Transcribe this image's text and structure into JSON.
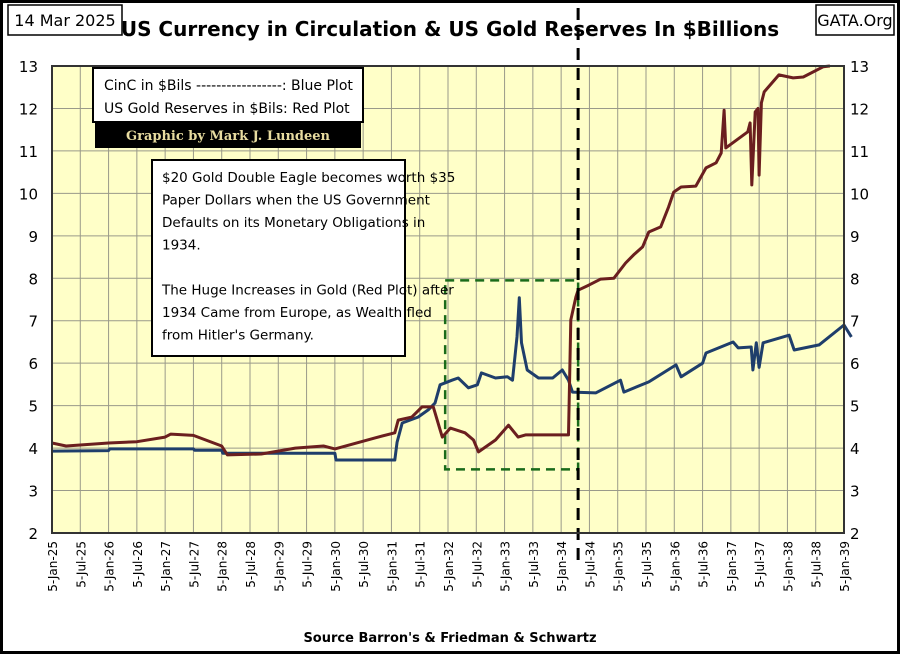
{
  "header": {
    "date": "14 Mar 2025",
    "title": "US Currency in Circulation & US Gold Reserves In $Billions",
    "site": "GATA.Org"
  },
  "legend": {
    "line1": "CinC in $Bils -----------------:  Blue Plot",
    "line2": "US Gold Reserves in $Bils:  Red Plot",
    "credit": "Graphic by Mark J. Lundeen"
  },
  "note": {
    "lines": [
      "$20 Gold Double Eagle becomes worth $35",
      "Paper Dollars when the US Government",
      "Defaults on its Monetary Obligations in",
      "1934.",
      "",
      "The Huge Increases in Gold (Red Plot) after",
      "1934 Came from Europe, as Wealth fled",
      "from Hitler's Germany."
    ]
  },
  "colors": {
    "plot_bg": "#ffffc8",
    "blue": "#1f3e6b",
    "red": "#6b1f1f",
    "green": "#1a6b1a",
    "grid": "#9a9a8a"
  },
  "chart_data": {
    "type": "line",
    "title": "US Currency in Circulation & US Gold Reserves In $Billions",
    "xlabel": "Source Barron's & Friedman & Schwartz",
    "ylabel": "",
    "ylim": [
      2,
      13
    ],
    "xlim": [
      1925.0,
      1939.0
    ],
    "grid": true,
    "yticks": [
      "2",
      "3",
      "4",
      "5",
      "6",
      "7",
      "8",
      "9",
      "10",
      "11",
      "12",
      "13"
    ],
    "xticks": [
      "5-Jan-25",
      "5-Jul-25",
      "5-Jan-26",
      "5-Jul-26",
      "5-Jan-27",
      "5-Jul-27",
      "5-Jan-28",
      "5-Jul-28",
      "5-Jan-29",
      "5-Jul-29",
      "5-Jan-30",
      "5-Jul-30",
      "5-Jan-31",
      "5-Jul-31",
      "5-Jan-32",
      "5-Jul-32",
      "5-Jan-33",
      "5-Jul-33",
      "5-Jan-34",
      "5-Jul-34",
      "5-Jan-35",
      "5-Jul-35",
      "5-Jan-36",
      "5-Jul-36",
      "5-Jan-37",
      "5-Jul-37",
      "5-Jan-38",
      "5-Jul-38",
      "5-Jan-39"
    ],
    "series": [
      {
        "name": "CinC in $Bils",
        "color": "blue",
        "points": [
          [
            1925.0,
            3.93
          ],
          [
            1926.0,
            3.94
          ],
          [
            1926.02,
            3.98
          ],
          [
            1927.5,
            3.98
          ],
          [
            1927.52,
            3.95
          ],
          [
            1928.0,
            3.95
          ],
          [
            1928.02,
            3.88
          ],
          [
            1930.0,
            3.88
          ],
          [
            1930.02,
            3.72
          ],
          [
            1931.06,
            3.72
          ],
          [
            1931.1,
            4.14
          ],
          [
            1931.19,
            4.59
          ],
          [
            1931.47,
            4.73
          ],
          [
            1931.65,
            4.9
          ],
          [
            1931.77,
            5.06
          ],
          [
            1931.86,
            5.49
          ],
          [
            1932.07,
            5.6
          ],
          [
            1932.18,
            5.65
          ],
          [
            1932.36,
            5.42
          ],
          [
            1932.52,
            5.49
          ],
          [
            1932.59,
            5.77
          ],
          [
            1932.84,
            5.65
          ],
          [
            1933.05,
            5.68
          ],
          [
            1933.14,
            5.6
          ],
          [
            1933.22,
            6.62
          ],
          [
            1933.26,
            7.54
          ],
          [
            1933.3,
            6.48
          ],
          [
            1933.4,
            5.84
          ],
          [
            1933.6,
            5.65
          ],
          [
            1933.85,
            5.65
          ],
          [
            1934.02,
            5.84
          ],
          [
            1934.13,
            5.6
          ],
          [
            1934.2,
            5.32
          ],
          [
            1934.61,
            5.3
          ],
          [
            1935.05,
            5.6
          ],
          [
            1935.11,
            5.32
          ],
          [
            1935.55,
            5.56
          ],
          [
            1936.03,
            5.96
          ],
          [
            1936.12,
            5.68
          ],
          [
            1936.5,
            6.0
          ],
          [
            1936.56,
            6.24
          ],
          [
            1937.04,
            6.5
          ],
          [
            1937.13,
            6.36
          ],
          [
            1937.36,
            6.38
          ],
          [
            1937.39,
            5.84
          ],
          [
            1937.45,
            6.48
          ],
          [
            1937.5,
            5.9
          ],
          [
            1937.57,
            6.48
          ],
          [
            1938.03,
            6.66
          ],
          [
            1938.12,
            6.31
          ],
          [
            1938.56,
            6.43
          ],
          [
            1939.0,
            6.9
          ],
          [
            1939.13,
            6.62
          ]
        ]
      },
      {
        "name": "US Gold Reserves in $Bils",
        "color": "red",
        "points": [
          [
            1925.0,
            4.12
          ],
          [
            1925.25,
            4.05
          ],
          [
            1926.0,
            4.12
          ],
          [
            1926.5,
            4.15
          ],
          [
            1927.0,
            4.26
          ],
          [
            1927.1,
            4.33
          ],
          [
            1927.5,
            4.3
          ],
          [
            1928.0,
            4.05
          ],
          [
            1928.1,
            3.84
          ],
          [
            1928.7,
            3.86
          ],
          [
            1929.3,
            4.0
          ],
          [
            1929.8,
            4.05
          ],
          [
            1930.0,
            3.98
          ],
          [
            1930.71,
            4.24
          ],
          [
            1931.06,
            4.36
          ],
          [
            1931.12,
            4.66
          ],
          [
            1931.36,
            4.73
          ],
          [
            1931.54,
            4.97
          ],
          [
            1931.74,
            4.97
          ],
          [
            1931.86,
            4.43
          ],
          [
            1931.9,
            4.26
          ],
          [
            1932.04,
            4.47
          ],
          [
            1932.3,
            4.36
          ],
          [
            1932.45,
            4.19
          ],
          [
            1932.54,
            3.91
          ],
          [
            1932.84,
            4.19
          ],
          [
            1933.07,
            4.54
          ],
          [
            1933.24,
            4.26
          ],
          [
            1933.37,
            4.31
          ],
          [
            1934.13,
            4.31
          ],
          [
            1934.17,
            7.02
          ],
          [
            1934.26,
            7.56
          ],
          [
            1934.3,
            7.72
          ],
          [
            1934.49,
            7.84
          ],
          [
            1934.7,
            7.98
          ],
          [
            1934.93,
            8.0
          ],
          [
            1935.14,
            8.36
          ],
          [
            1935.28,
            8.55
          ],
          [
            1935.44,
            8.74
          ],
          [
            1935.55,
            9.09
          ],
          [
            1935.76,
            9.21
          ],
          [
            1935.9,
            9.68
          ],
          [
            1935.99,
            10.03
          ],
          [
            1936.12,
            10.15
          ],
          [
            1936.38,
            10.17
          ],
          [
            1936.56,
            10.6
          ],
          [
            1936.74,
            10.72
          ],
          [
            1936.83,
            10.95
          ],
          [
            1936.88,
            11.96
          ],
          [
            1936.91,
            11.07
          ],
          [
            1937.3,
            11.45
          ],
          [
            1937.34,
            11.66
          ],
          [
            1937.37,
            10.2
          ],
          [
            1937.43,
            11.92
          ],
          [
            1937.48,
            12.0
          ],
          [
            1937.5,
            10.43
          ],
          [
            1937.54,
            12.13
          ],
          [
            1937.59,
            12.39
          ],
          [
            1937.85,
            12.79
          ],
          [
            1938.1,
            12.72
          ],
          [
            1938.28,
            12.74
          ],
          [
            1938.63,
            12.98
          ],
          [
            1938.75,
            13.0
          ]
        ]
      }
    ],
    "annotations": {
      "highlight_box": {
        "x": [
          1931.95,
          1934.3
        ],
        "y": [
          3.5,
          7.95
        ],
        "style": "green-dashed"
      },
      "vertical_marker": {
        "x": 1934.3,
        "style": "black-dashed"
      }
    }
  }
}
